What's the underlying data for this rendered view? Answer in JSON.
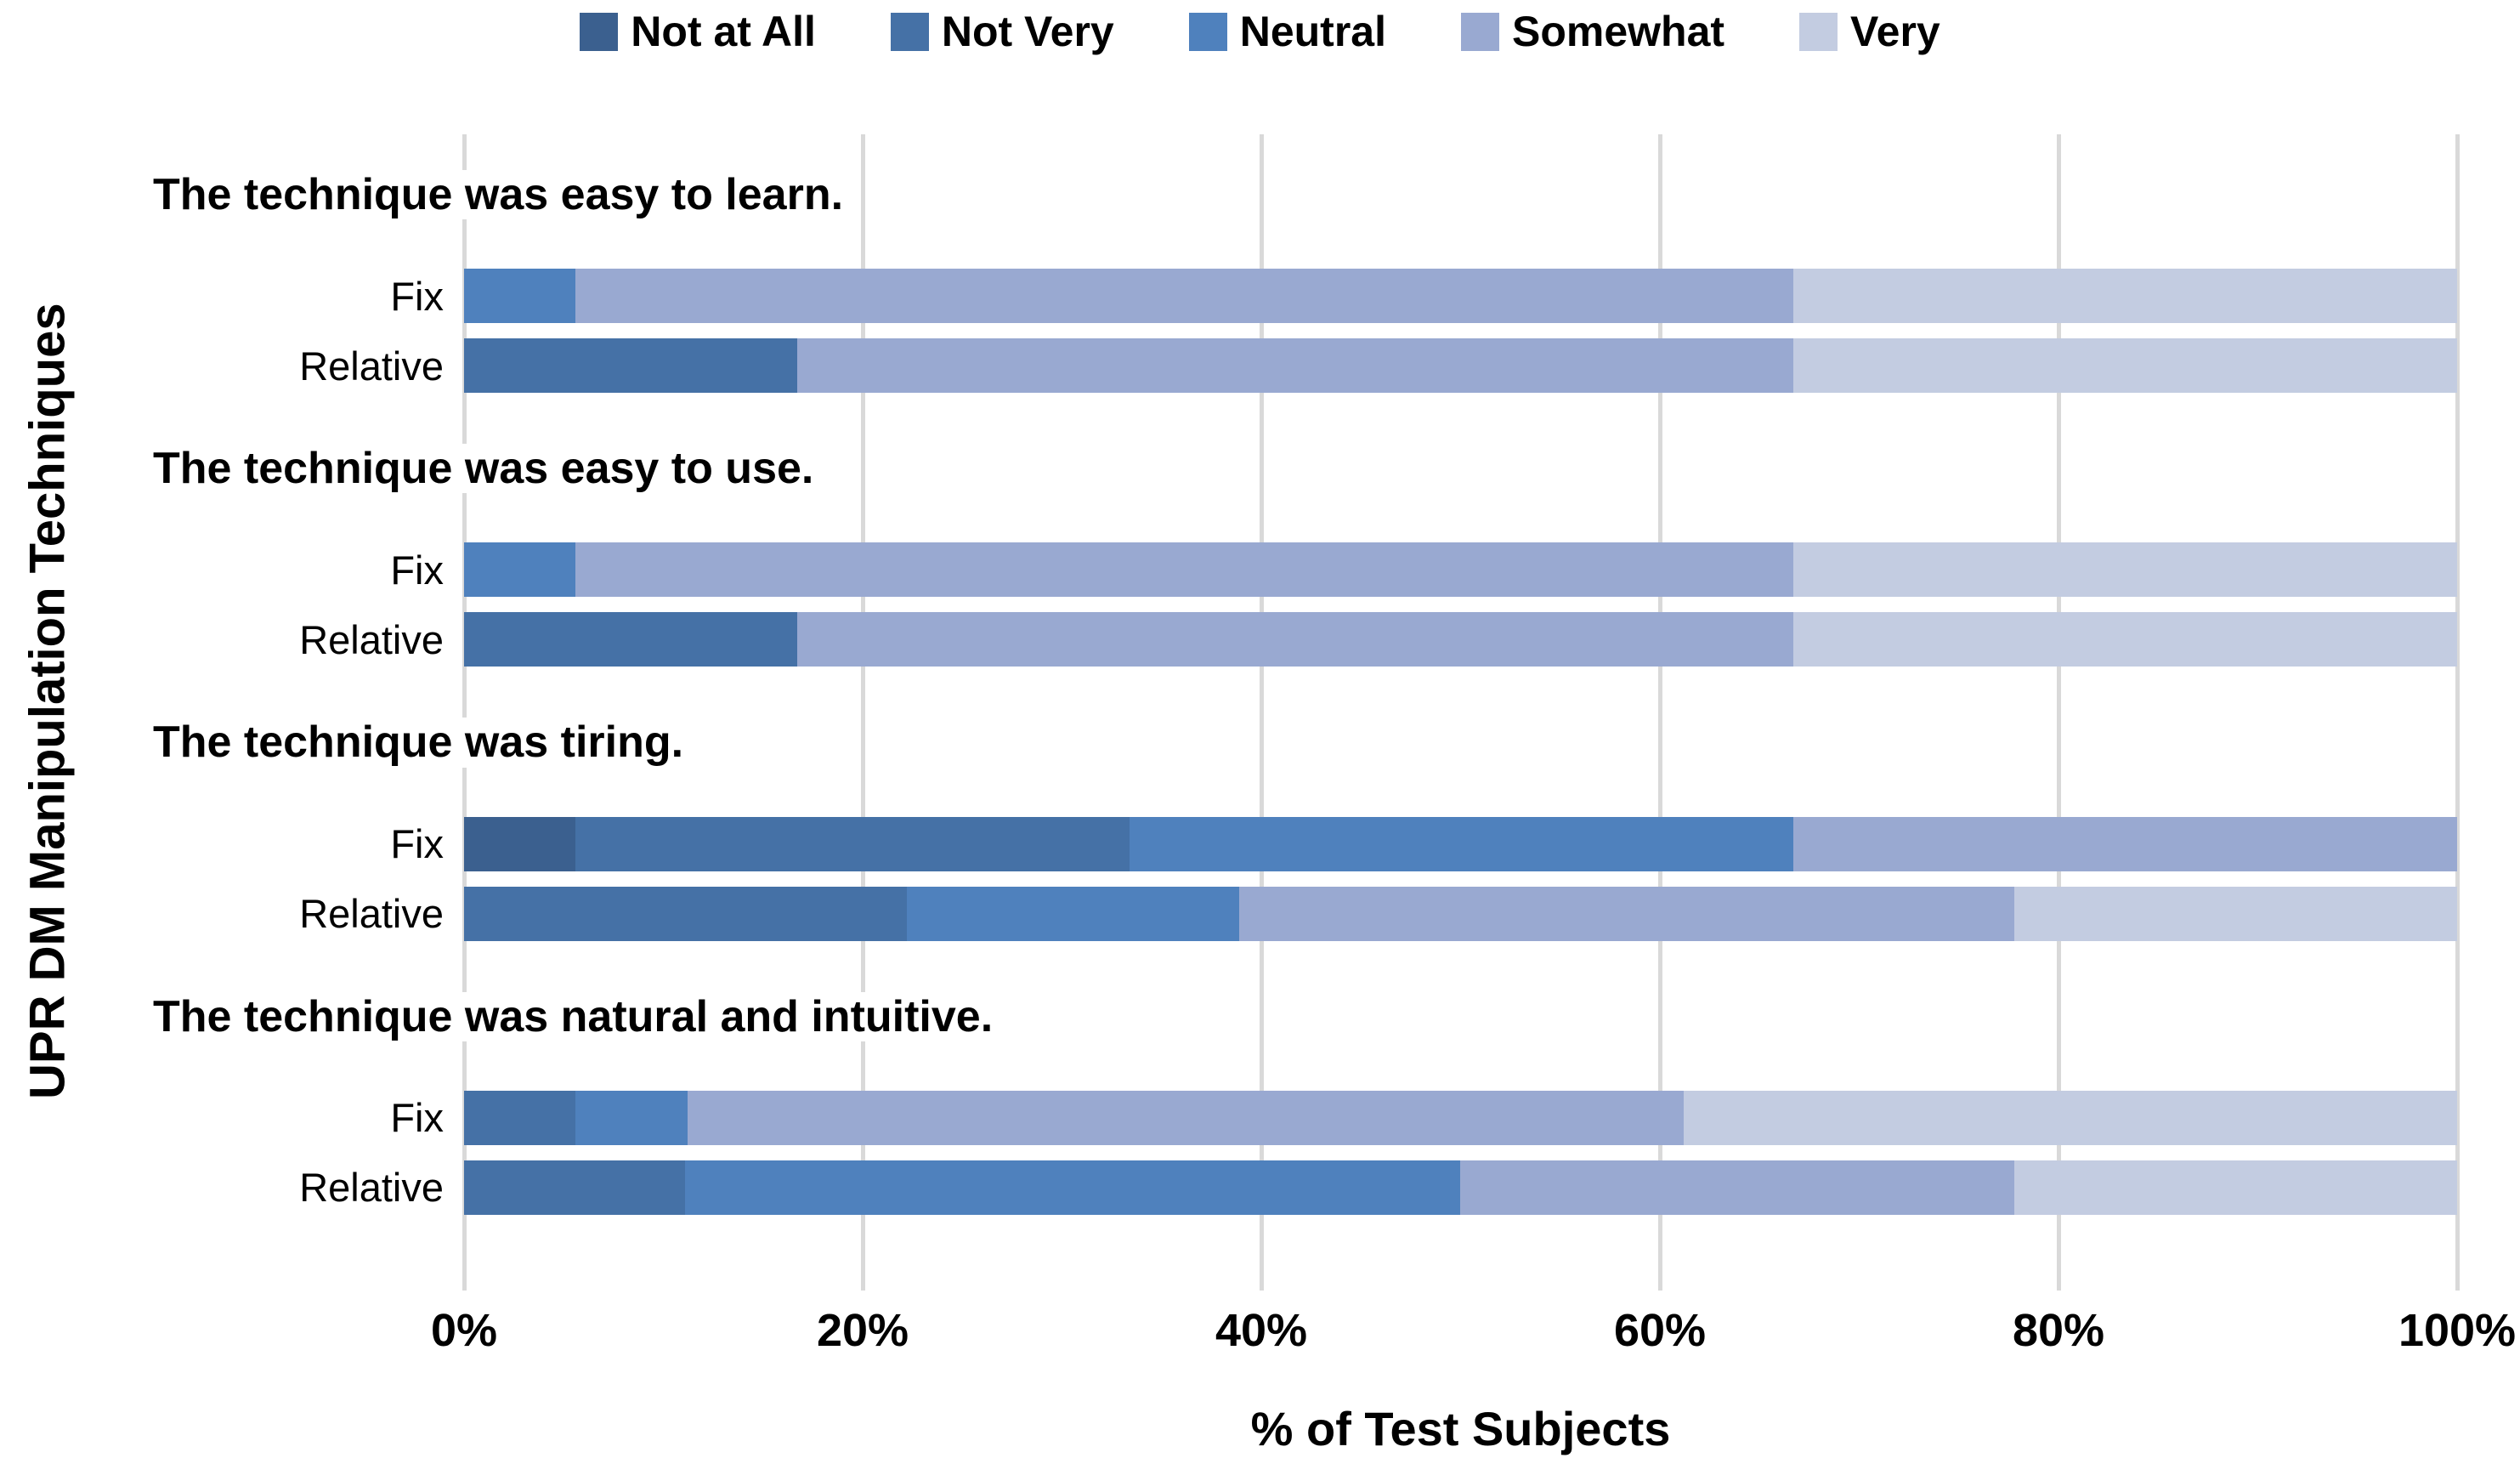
{
  "chart_data": {
    "type": "bar",
    "orientation": "horizontal",
    "stacked": true,
    "units": "percent",
    "title": "",
    "xlabel": "% of Test Subjects",
    "ylabel": "UPR DM Manipulation Techniques",
    "xlim": [
      0,
      100
    ],
    "x_tick_values": [
      0,
      20,
      40,
      60,
      80,
      100
    ],
    "x_tick_labels": [
      "0%",
      "20%",
      "40%",
      "60%",
      "80%",
      "100%"
    ],
    "grid": true,
    "gridline_color": "#D9D9D9",
    "legend_position": "top",
    "legend": [
      "Not at All",
      "Not Very",
      "Neutral",
      "Somewhat",
      "Very"
    ],
    "series_colors": [
      "#3B608F",
      "#4571A6",
      "#4F81BD",
      "#99A9D1",
      "#C3CCE1"
    ],
    "groups": [
      {
        "title": "The technique was easy to learn.",
        "bars": [
          {
            "label": "Fix",
            "values": {
              "Not at All": 0,
              "Not Very": 0,
              "Neutral": 5.6,
              "Somewhat": 61.1,
              "Very": 33.3
            }
          },
          {
            "label": "Relative",
            "values": {
              "Not at All": 0,
              "Not Very": 16.7,
              "Neutral": 0,
              "Somewhat": 50.0,
              "Very": 33.3
            }
          }
        ]
      },
      {
        "title": "The technique was easy to use.",
        "bars": [
          {
            "label": "Fix",
            "values": {
              "Not at All": 0,
              "Not Very": 0,
              "Neutral": 5.6,
              "Somewhat": 61.1,
              "Very": 33.3
            }
          },
          {
            "label": "Relative",
            "values": {
              "Not at All": 0,
              "Not Very": 16.7,
              "Neutral": 0,
              "Somewhat": 50.0,
              "Very": 33.3
            }
          }
        ]
      },
      {
        "title": "The technique was tiring.",
        "bars": [
          {
            "label": "Fix",
            "values": {
              "Not at All": 5.6,
              "Not Very": 27.8,
              "Neutral": 33.3,
              "Somewhat": 33.3,
              "Very": 0
            }
          },
          {
            "label": "Relative",
            "values": {
              "Not at All": 0,
              "Not Very": 22.2,
              "Neutral": 16.7,
              "Somewhat": 38.9,
              "Very": 22.2
            }
          }
        ]
      },
      {
        "title": "The technique was natural and intuitive.",
        "bars": [
          {
            "label": "Fix",
            "values": {
              "Not at All": 0,
              "Not Very": 5.6,
              "Neutral": 5.6,
              "Somewhat": 50.0,
              "Very": 38.9
            }
          },
          {
            "label": "Relative",
            "values": {
              "Not at All": 0,
              "Not Very": 11.1,
              "Neutral": 38.9,
              "Somewhat": 27.8,
              "Very": 22.2
            }
          }
        ]
      }
    ]
  }
}
